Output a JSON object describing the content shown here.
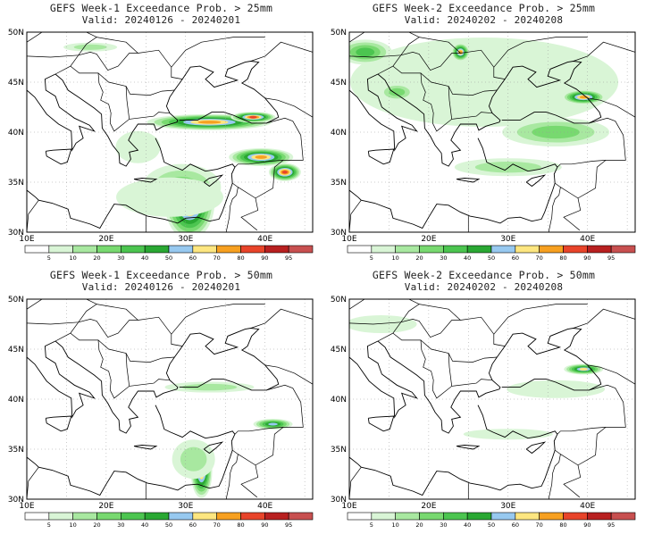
{
  "panels": [
    {
      "id": "w1-25",
      "title": "GEFS Week-1 Exceedance Prob. > 25mm",
      "valid": "Valid: 20240126 - 20240201",
      "blobs": [
        {
          "lon": 30.5,
          "lat": 33.0,
          "rx": 28,
          "ry": 42,
          "lvl": 9
        },
        {
          "lon": 29.5,
          "lat": 34.5,
          "rx": 44,
          "ry": 26,
          "lvl": 3
        },
        {
          "lon": 28.0,
          "lat": 33.5,
          "rx": 60,
          "ry": 22,
          "lvl": 1
        },
        {
          "lon": 33.0,
          "lat": 41.0,
          "rx": 70,
          "ry": 9,
          "lvl": 8
        },
        {
          "lon": 38.5,
          "lat": 41.5,
          "rx": 25,
          "ry": 6,
          "lvl": 9
        },
        {
          "lon": 39.5,
          "lat": 37.5,
          "rx": 36,
          "ry": 10,
          "lvl": 8
        },
        {
          "lon": 42.5,
          "lat": 36.0,
          "rx": 18,
          "ry": 10,
          "lvl": 9
        },
        {
          "lon": 24.0,
          "lat": 38.5,
          "rx": 25,
          "ry": 18,
          "lvl": 1
        },
        {
          "lon": 18.0,
          "lat": 48.5,
          "rx": 30,
          "ry": 5,
          "lvl": 2
        }
      ]
    },
    {
      "id": "w2-25",
      "title": "GEFS Week-2 Exceedance Prob. > 25mm",
      "valid": "Valid: 20240202 - 20240208",
      "blobs": [
        {
          "lon": 27.0,
          "lat": 45.0,
          "rx": 150,
          "ry": 50,
          "lvl": 1
        },
        {
          "lon": 12.0,
          "lat": 48.0,
          "rx": 30,
          "ry": 14,
          "lvl": 4
        },
        {
          "lon": 24.0,
          "lat": 48.0,
          "rx": 10,
          "ry": 10,
          "lvl": 8
        },
        {
          "lon": 39.5,
          "lat": 43.5,
          "rx": 24,
          "ry": 8,
          "lvl": 8
        },
        {
          "lon": 36.0,
          "lat": 40.0,
          "rx": 60,
          "ry": 16,
          "lvl": 3
        },
        {
          "lon": 30.0,
          "lat": 36.5,
          "rx": 60,
          "ry": 10,
          "lvl": 2
        },
        {
          "lon": 16.0,
          "lat": 44.0,
          "rx": 20,
          "ry": 10,
          "lvl": 3
        }
      ]
    },
    {
      "id": "w1-50",
      "title": "GEFS Week-1 Exceedance Prob. > 50mm",
      "valid": "Valid: 20240126 - 20240201",
      "blobs": [
        {
          "lon": 32.0,
          "lat": 32.8,
          "rx": 12,
          "ry": 30,
          "lvl": 8
        },
        {
          "lon": 31.0,
          "lat": 34.0,
          "rx": 24,
          "ry": 22,
          "lvl": 2
        },
        {
          "lon": 33.0,
          "lat": 41.2,
          "rx": 50,
          "ry": 6,
          "lvl": 2
        },
        {
          "lon": 41.0,
          "lat": 37.5,
          "rx": 22,
          "ry": 6,
          "lvl": 6
        }
      ]
    },
    {
      "id": "w2-50",
      "title": "GEFS Week-2 Exceedance Prob. > 50mm",
      "valid": "Valid: 20240202 - 20240208",
      "blobs": [
        {
          "lon": 14.0,
          "lat": 47.5,
          "rx": 40,
          "ry": 10,
          "lvl": 1
        },
        {
          "lon": 39.5,
          "lat": 43.0,
          "rx": 22,
          "ry": 6,
          "lvl": 7
        },
        {
          "lon": 36.0,
          "lat": 41.0,
          "rx": 55,
          "ry": 10,
          "lvl": 1
        },
        {
          "lon": 30.0,
          "lat": 36.5,
          "rx": 50,
          "ry": 6,
          "lvl": 1
        }
      ]
    }
  ],
  "axis": {
    "lon_labels": [
      "10E",
      "20E",
      "30E",
      "40E"
    ],
    "lat_labels": [
      "50N",
      "45N",
      "40N",
      "35N",
      "30N"
    ],
    "lon_range": [
      10,
      46
    ],
    "lat_range": [
      30,
      50
    ]
  },
  "colorbar": {
    "labels": [
      "5",
      "10",
      "20",
      "30",
      "40",
      "50",
      "60",
      "70",
      "80",
      "90",
      "95"
    ],
    "colors": [
      "#ffffff",
      "#d9f5d6",
      "#a8e8a0",
      "#78d970",
      "#4cc550",
      "#2aa833",
      "#97c9f0",
      "#fde680",
      "#f7a020",
      "#e8442a",
      "#b82020",
      "#c85050"
    ]
  }
}
